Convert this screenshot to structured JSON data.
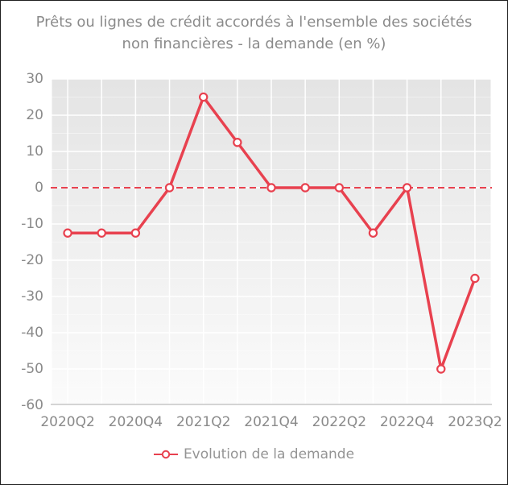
{
  "title": {
    "line1": "Prêts ou lignes de crédit accordés à l'ensemble des sociétés",
    "line2": "non financières - la demande (en %)"
  },
  "legend": {
    "label": "Evolution de la demande",
    "marker": "open-circle-on-line"
  },
  "colors": {
    "series": "#e8414f",
    "marker_fill": "#ffffff",
    "grid": "#ffffff",
    "axis_line": "#d4d4d4",
    "plot_bg_top": "#e4e4e4",
    "plot_bg_bottom": "#fbfbfb",
    "title_text": "#8a8a8a",
    "tick_text": "#8a8a8a",
    "legend_text": "#949494"
  },
  "chart_data": {
    "type": "line",
    "title": "Prêts ou lignes de crédit accordés à l'ensemble des sociétés non financières - la demande (en %)",
    "categories": [
      "2020Q2",
      "2020Q3",
      "2020Q4",
      "2021Q1",
      "2021Q2",
      "2021Q3",
      "2021Q4",
      "2022Q1",
      "2022Q2",
      "2022Q3",
      "2022Q4",
      "2023Q1",
      "2023Q2"
    ],
    "series": [
      {
        "name": "Evolution de la demande",
        "values": [
          -12.5,
          -12.5,
          -12.5,
          0,
          25,
          12.5,
          0,
          0,
          0,
          -12.5,
          0,
          -50,
          -25
        ]
      }
    ],
    "x_tick_indices": [
      0,
      2,
      4,
      6,
      8,
      10,
      12
    ],
    "x_tick_labels": [
      "2020Q2",
      "2020Q4",
      "2021Q2",
      "2021Q4",
      "2022Q2",
      "2022Q4",
      "2023Q2"
    ],
    "y_ticks": [
      30,
      20,
      10,
      0,
      -10,
      -20,
      -30,
      -40,
      -50,
      -60
    ],
    "ylim": [
      -60,
      30
    ],
    "zero_line": {
      "value": 0,
      "style": "dashed"
    },
    "grid": "on",
    "marker": "open-circle",
    "legend_position": "bottom"
  }
}
